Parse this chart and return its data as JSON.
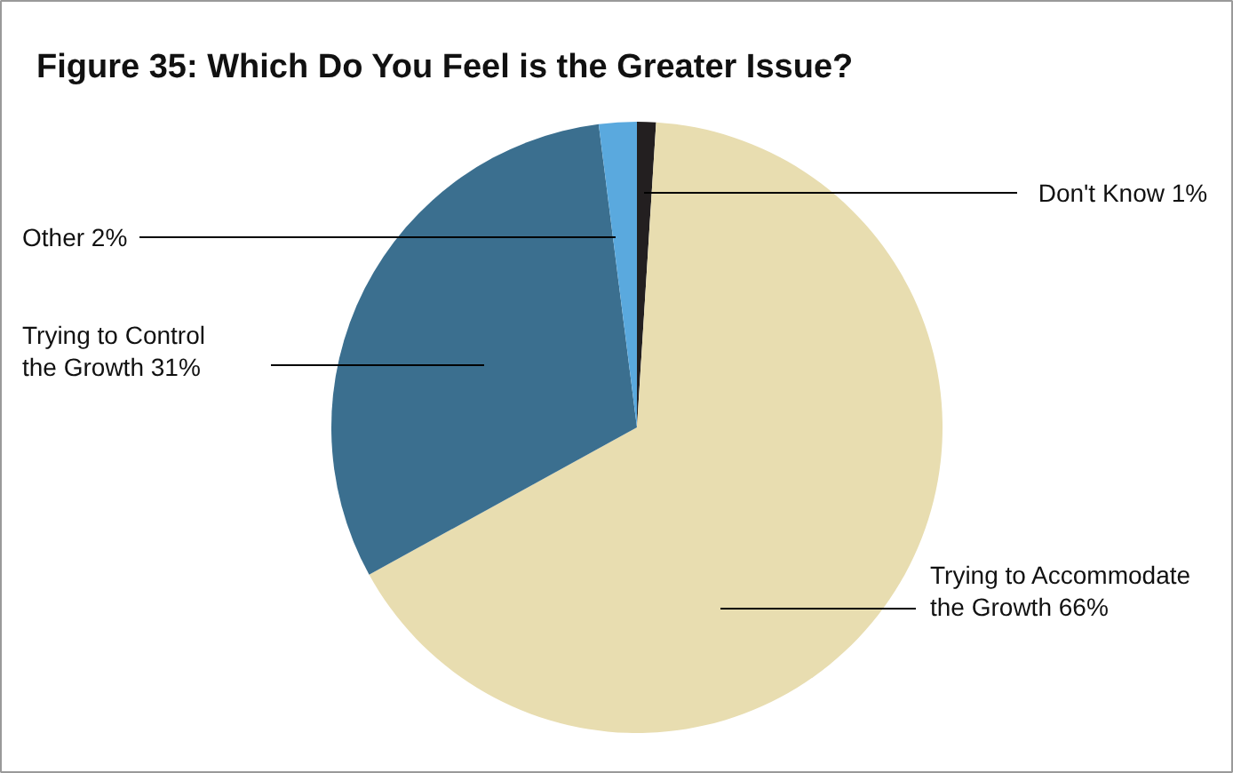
{
  "chart_data": {
    "type": "pie",
    "title": "Figure 35:   Which Do You Feel is the Greater Issue?",
    "categories": [
      "Don't Know",
      "Trying to Accommodate the Growth",
      "Trying to Control the Growth",
      "Other"
    ],
    "values": [
      1,
      66,
      31,
      2
    ],
    "value_labels": [
      "1%",
      "66%",
      "31%",
      "2%"
    ],
    "colors": [
      "#231f20",
      "#e8ddb0",
      "#3b6f8f",
      "#5aa9de"
    ]
  }
}
